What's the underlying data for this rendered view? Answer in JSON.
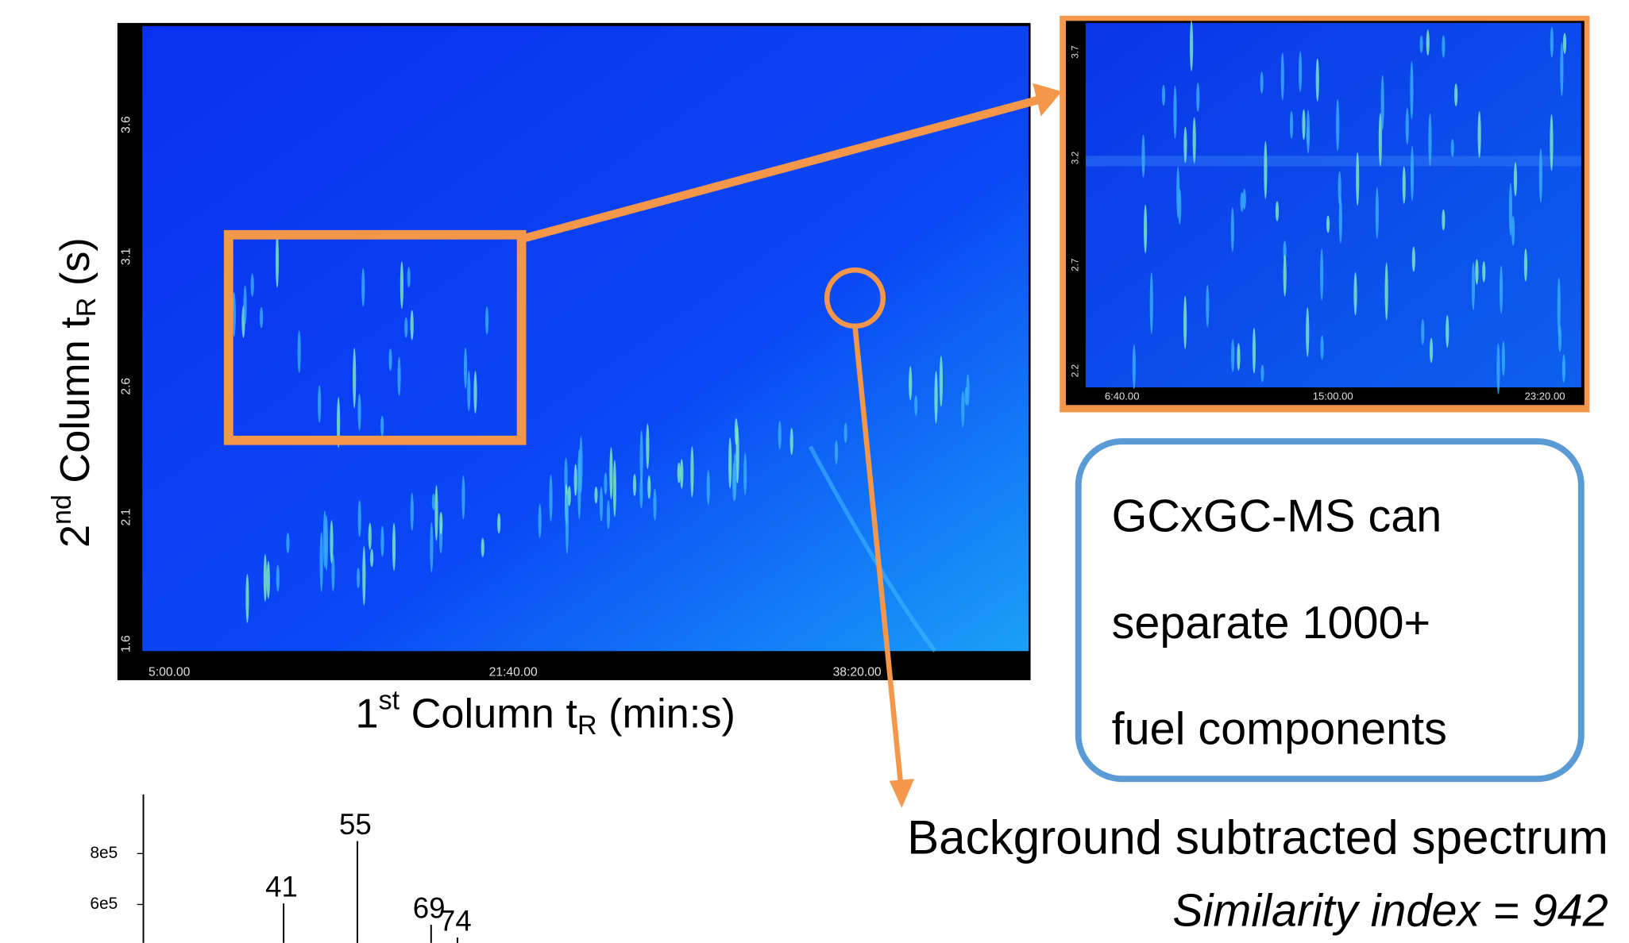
{
  "main_plot": {
    "y_axis_label": {
      "a": "2",
      "b": "nd",
      "c": " Column t",
      "d": "R",
      "e": " (s)"
    },
    "x_axis_label": {
      "a": "1",
      "b": "st",
      "c": " Column t",
      "d": "R",
      "e": " (min:s)"
    },
    "yticks": [
      "3.6",
      "3.1",
      "2.6",
      "2.1",
      "1.6"
    ],
    "xticks": [
      "5:00.00",
      "21:40.00",
      "38:20.00"
    ]
  },
  "inset_plot": {
    "yticks": [
      "3.7",
      "3.2",
      "2.7",
      "2.2"
    ],
    "xticks": [
      "6:40.00",
      "15:00.00",
      "23:20.00"
    ]
  },
  "callout": {
    "lines": [
      "GCxGC-MS can",
      "separate 1000+",
      "fuel components"
    ]
  },
  "spectrum_caption": {
    "title": "Background subtracted spectrum",
    "subtitle": "Similarity index = 942"
  },
  "chart_data": {
    "type": "spectrum",
    "x": [
      41,
      55,
      69,
      74
    ],
    "values": [
      604000,
      849000,
      520000,
      470000
    ],
    "color": "#000000",
    "yticks": [
      {
        "value": 800000,
        "label": "8e5"
      },
      {
        "value": 600000,
        "label": "6e5"
      }
    ]
  }
}
